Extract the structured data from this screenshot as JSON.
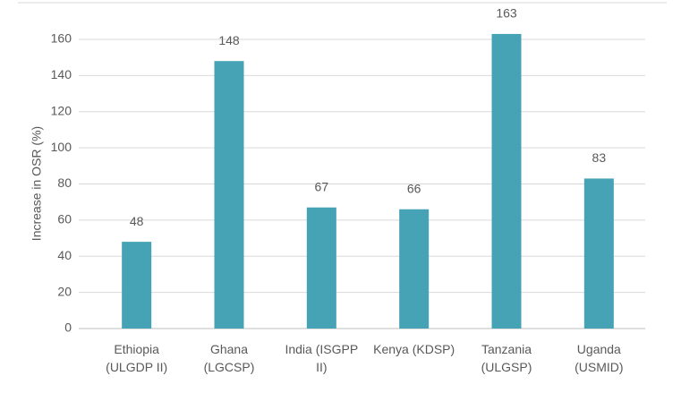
{
  "chart_data": {
    "type": "bar",
    "y_label": "Increase in OSR (%)",
    "categories": [
      "Ethiopia (ULGDP II)",
      "Ghana (LGCSP)",
      "India (ISGPP II)",
      "Kenya (KDSP)",
      "Tanzania (ULGSP)",
      "Uganda (USMID)"
    ],
    "values": [
      48,
      148,
      67,
      66,
      163,
      83
    ],
    "color": "#46a3b5",
    "ylim": [
      0,
      180
    ],
    "yticks": [
      0,
      20,
      40,
      60,
      80,
      100,
      120,
      140,
      160
    ],
    "grid": true
  }
}
